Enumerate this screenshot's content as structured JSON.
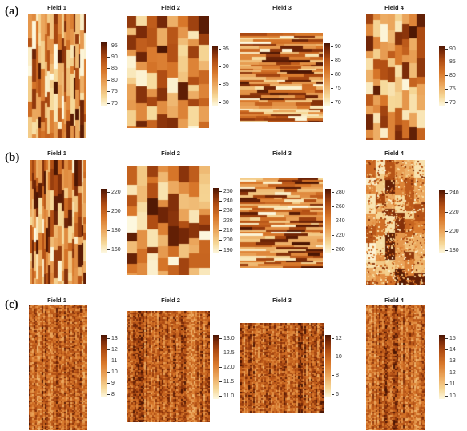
{
  "figure": {
    "rows": [
      {
        "label": "(a)",
        "panels": [
          {
            "title": "Field 1",
            "ticks": [
              "95",
              "90",
              "85",
              "80",
              "75",
              "70"
            ],
            "pattern": "columns",
            "seed": 11
          },
          {
            "title": "Field 2",
            "ticks": [
              "95",
              "90",
              "85",
              "80"
            ],
            "pattern": "blocks",
            "seed": 12
          },
          {
            "title": "Field 3",
            "ticks": [
              "90",
              "85",
              "80",
              "75",
              "70"
            ],
            "pattern": "rows",
            "seed": 13
          },
          {
            "title": "Field 4",
            "ticks": [
              "90",
              "85",
              "80",
              "75",
              "70"
            ],
            "pattern": "blocks",
            "seed": 14
          }
        ]
      },
      {
        "label": "(b)",
        "panels": [
          {
            "title": "Field 1",
            "ticks": [
              "220",
              "200",
              "180",
              "160"
            ],
            "pattern": "columns",
            "seed": 21
          },
          {
            "title": "Field 2",
            "ticks": [
              "250",
              "240",
              "230",
              "220",
              "210",
              "200",
              "190"
            ],
            "pattern": "blocks",
            "seed": 22
          },
          {
            "title": "Field 3",
            "ticks": [
              "280",
              "260",
              "240",
              "220",
              "200"
            ],
            "pattern": "rows",
            "seed": 23
          },
          {
            "title": "Field 4",
            "ticks": [
              "240",
              "220",
              "200",
              "180"
            ],
            "pattern": "smoothblocks",
            "seed": 24
          }
        ]
      },
      {
        "label": "(c)",
        "panels": [
          {
            "title": "Field 1",
            "ticks": [
              "13",
              "12",
              "11",
              "10",
              "9",
              "8"
            ],
            "pattern": "noise",
            "seed": 31
          },
          {
            "title": "Field 2",
            "ticks": [
              "13.0",
              "12.5",
              "12.0",
              "11.5",
              "11.0"
            ],
            "pattern": "noise",
            "seed": 32
          },
          {
            "title": "Field 3",
            "ticks": [
              "12",
              "10",
              "8",
              "6"
            ],
            "pattern": "noise",
            "seed": 33
          },
          {
            "title": "Field 4",
            "ticks": [
              "15",
              "14",
              "13",
              "12",
              "11",
              "10"
            ],
            "pattern": "noise",
            "seed": 34
          }
        ]
      }
    ]
  }
}
